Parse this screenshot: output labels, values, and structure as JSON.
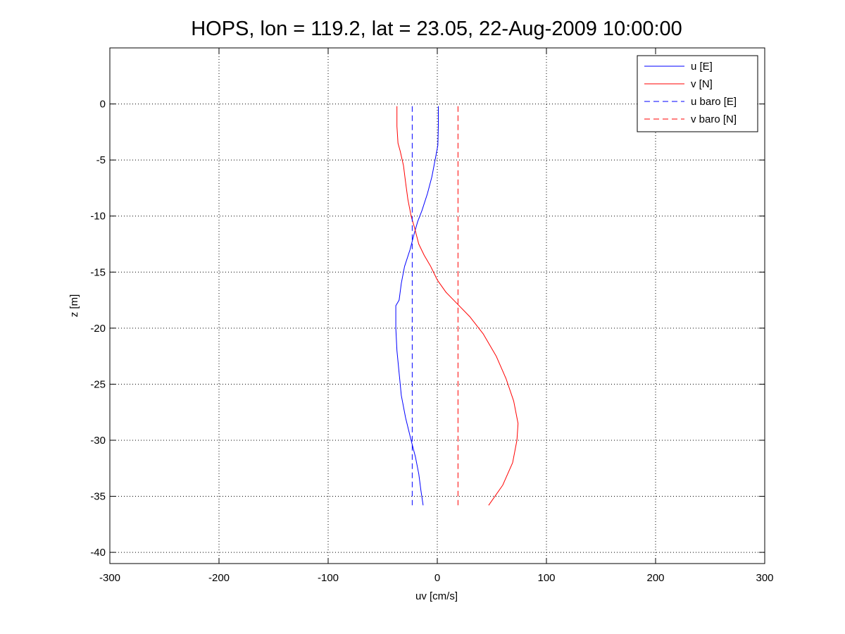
{
  "chart_data": {
    "type": "line",
    "title": "HOPS, lon = 119.2, lat = 23.05, 22-Aug-2009 10:00:00",
    "xlabel": "uv [cm/s]",
    "ylabel": "z [m]",
    "xlim": [
      -300,
      300
    ],
    "ylim": [
      -41,
      5
    ],
    "xticks": [
      -300,
      -200,
      -100,
      0,
      100,
      200,
      300
    ],
    "yticks": [
      0,
      -5,
      -10,
      -15,
      -20,
      -25,
      -30,
      -35,
      -40
    ],
    "grid": true,
    "legend_position": "top-right",
    "series": [
      {
        "name": "u [E]",
        "color": "#0000ff",
        "style": "solid",
        "points": [
          [
            1,
            -0.2
          ],
          [
            1,
            -2
          ],
          [
            0.5,
            -3.7
          ],
          [
            -2,
            -5
          ],
          [
            -5,
            -6.5
          ],
          [
            -9,
            -8
          ],
          [
            -14,
            -9.5
          ],
          [
            -18,
            -10.5
          ],
          [
            -21,
            -11.5
          ],
          [
            -25,
            -13
          ],
          [
            -30,
            -14.5
          ],
          [
            -33,
            -16
          ],
          [
            -35,
            -17.5
          ],
          [
            -38,
            -18
          ],
          [
            -38,
            -20
          ],
          [
            -37,
            -22
          ],
          [
            -35,
            -24
          ],
          [
            -33,
            -26
          ],
          [
            -29,
            -28
          ],
          [
            -24,
            -30
          ],
          [
            -20,
            -31.5
          ],
          [
            -17,
            -33
          ],
          [
            -15,
            -34.5
          ],
          [
            -13,
            -35.8
          ]
        ]
      },
      {
        "name": "v [N]",
        "color": "#ff0000",
        "style": "solid",
        "points": [
          [
            -37,
            -0.2
          ],
          [
            -37,
            -2
          ],
          [
            -36,
            -3.5
          ],
          [
            -34,
            -4.2
          ],
          [
            -31,
            -5.5
          ],
          [
            -29,
            -7
          ],
          [
            -27,
            -8.5
          ],
          [
            -24,
            -10
          ],
          [
            -21,
            -11
          ],
          [
            -17,
            -12.5
          ],
          [
            -12,
            -13.5
          ],
          [
            -6,
            -14.5
          ],
          [
            0,
            -15.7
          ],
          [
            8,
            -16.8
          ],
          [
            18,
            -17.8
          ],
          [
            30,
            -19
          ],
          [
            42,
            -20.5
          ],
          [
            54,
            -22.5
          ],
          [
            63,
            -24.5
          ],
          [
            70,
            -26.5
          ],
          [
            74,
            -28.5
          ],
          [
            73,
            -30
          ],
          [
            69,
            -32
          ],
          [
            60,
            -34
          ],
          [
            47,
            -35.8
          ]
        ]
      },
      {
        "name": "u baro [E]",
        "color": "#0000ff",
        "style": "dashed",
        "points": [
          [
            -23,
            -0.2
          ],
          [
            -23,
            -35.8
          ]
        ]
      },
      {
        "name": "v baro [N]",
        "color": "#ff0000",
        "style": "dashed",
        "points": [
          [
            19,
            -0.2
          ],
          [
            19,
            -35.8
          ]
        ]
      }
    ]
  }
}
